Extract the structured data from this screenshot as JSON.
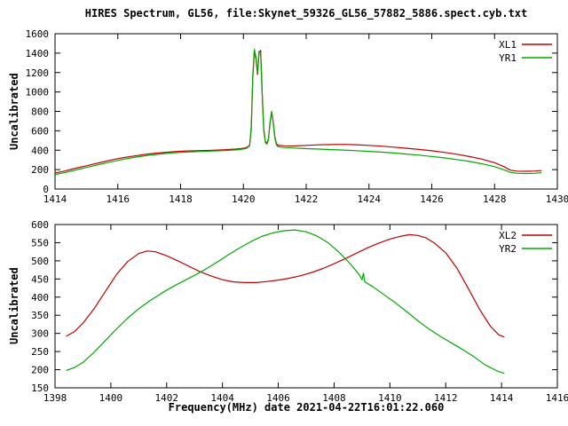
{
  "page": {
    "title": "HIRES Spectrum, GL56, file:Skynet_59326_GL56_57882_5886.spect.cyb.txt",
    "xlabel": "Frequency(MHz) date 2021-04-22T16:01:22.060"
  },
  "colors": {
    "axis": "#000000",
    "text": "#000000",
    "background": "#ffffff",
    "xl_red": "#c00000",
    "yr_green": "#00a800"
  },
  "chart_data": [
    {
      "type": "line",
      "ylabel": "Uncalibrated",
      "xlim": [
        1414,
        1430
      ],
      "ylim": [
        0,
        1600
      ],
      "xticks": [
        1414,
        1416,
        1418,
        1420,
        1422,
        1424,
        1426,
        1428,
        1430
      ],
      "yticks": [
        0,
        200,
        400,
        600,
        800,
        1000,
        1200,
        1400,
        1600
      ],
      "legend_position": "top-right",
      "series": [
        {
          "name": "XL1",
          "color": "#c00000",
          "points": [
            [
              1414.0,
              165
            ],
            [
              1414.3,
              185
            ],
            [
              1414.6,
              210
            ],
            [
              1415.0,
              240
            ],
            [
              1415.4,
              270
            ],
            [
              1415.8,
              300
            ],
            [
              1416.2,
              325
            ],
            [
              1416.6,
              345
            ],
            [
              1417.0,
              362
            ],
            [
              1417.4,
              375
            ],
            [
              1417.8,
              385
            ],
            [
              1418.2,
              392
            ],
            [
              1418.6,
              396
            ],
            [
              1419.0,
              400
            ],
            [
              1419.4,
              405
            ],
            [
              1419.8,
              412
            ],
            [
              1420.0,
              420
            ],
            [
              1420.1,
              428
            ],
            [
              1420.2,
              450
            ],
            [
              1420.25,
              620
            ],
            [
              1420.3,
              1150
            ],
            [
              1420.35,
              1420
            ],
            [
              1420.4,
              1340
            ],
            [
              1420.45,
              1180
            ],
            [
              1420.5,
              1400
            ],
            [
              1420.55,
              1430
            ],
            [
              1420.6,
              980
            ],
            [
              1420.65,
              620
            ],
            [
              1420.7,
              490
            ],
            [
              1420.75,
              472
            ],
            [
              1420.8,
              520
            ],
            [
              1420.85,
              680
            ],
            [
              1420.9,
              790
            ],
            [
              1420.95,
              690
            ],
            [
              1421.0,
              540
            ],
            [
              1421.05,
              470
            ],
            [
              1421.1,
              452
            ],
            [
              1421.3,
              445
            ],
            [
              1421.6,
              443
            ],
            [
              1422.0,
              450
            ],
            [
              1422.4,
              455
            ],
            [
              1422.8,
              458
            ],
            [
              1423.2,
              460
            ],
            [
              1423.6,
              456
            ],
            [
              1424.0,
              450
            ],
            [
              1424.4,
              442
            ],
            [
              1424.8,
              432
            ],
            [
              1425.2,
              420
            ],
            [
              1425.6,
              408
            ],
            [
              1426.0,
              394
            ],
            [
              1426.4,
              378
            ],
            [
              1426.8,
              358
            ],
            [
              1427.2,
              335
            ],
            [
              1427.6,
              308
            ],
            [
              1428.0,
              272
            ],
            [
              1428.3,
              230
            ],
            [
              1428.5,
              195
            ],
            [
              1428.7,
              185
            ],
            [
              1429.0,
              183
            ],
            [
              1429.3,
              186
            ],
            [
              1429.5,
              190
            ]
          ]
        },
        {
          "name": "YR1",
          "color": "#00a800",
          "points": [
            [
              1414.0,
              148
            ],
            [
              1414.3,
              168
            ],
            [
              1414.6,
              192
            ],
            [
              1415.0,
              222
            ],
            [
              1415.4,
              252
            ],
            [
              1415.8,
              282
            ],
            [
              1416.2,
              308
            ],
            [
              1416.6,
              330
            ],
            [
              1417.0,
              348
            ],
            [
              1417.4,
              362
            ],
            [
              1417.8,
              373
            ],
            [
              1418.2,
              381
            ],
            [
              1418.6,
              386
            ],
            [
              1419.0,
              391
            ],
            [
              1419.4,
              396
            ],
            [
              1419.8,
              404
            ],
            [
              1420.0,
              412
            ],
            [
              1420.1,
              420
            ],
            [
              1420.2,
              445
            ],
            [
              1420.25,
              650
            ],
            [
              1420.3,
              1180
            ],
            [
              1420.35,
              1440
            ],
            [
              1420.4,
              1360
            ],
            [
              1420.45,
              1200
            ],
            [
              1420.5,
              1420
            ],
            [
              1420.55,
              1400
            ],
            [
              1420.6,
              950
            ],
            [
              1420.65,
              600
            ],
            [
              1420.7,
              478
            ],
            [
              1420.75,
              462
            ],
            [
              1420.8,
              510
            ],
            [
              1420.85,
              690
            ],
            [
              1420.9,
              800
            ],
            [
              1420.95,
              680
            ],
            [
              1421.0,
              530
            ],
            [
              1421.05,
              455
            ],
            [
              1421.1,
              436
            ],
            [
              1421.3,
              428
            ],
            [
              1421.6,
              422
            ],
            [
              1422.0,
              416
            ],
            [
              1422.4,
              411
            ],
            [
              1422.8,
              406
            ],
            [
              1423.2,
              401
            ],
            [
              1423.6,
              395
            ],
            [
              1424.0,
              388
            ],
            [
              1424.4,
              380
            ],
            [
              1424.8,
              371
            ],
            [
              1425.2,
              360
            ],
            [
              1425.6,
              349
            ],
            [
              1426.0,
              336
            ],
            [
              1426.4,
              321
            ],
            [
              1426.8,
              304
            ],
            [
              1427.2,
              284
            ],
            [
              1427.6,
              260
            ],
            [
              1428.0,
              230
            ],
            [
              1428.3,
              198
            ],
            [
              1428.5,
              172
            ],
            [
              1428.7,
              163
            ],
            [
              1429.0,
              160
            ],
            [
              1429.3,
              163
            ],
            [
              1429.5,
              167
            ]
          ]
        }
      ]
    },
    {
      "type": "line",
      "ylabel": "Uncalibrated",
      "xlim": [
        1398,
        1416
      ],
      "ylim": [
        150,
        600
      ],
      "xticks": [
        1398,
        1400,
        1402,
        1404,
        1406,
        1408,
        1410,
        1412,
        1414,
        1416
      ],
      "yticks": [
        150,
        200,
        250,
        300,
        350,
        400,
        450,
        500,
        550,
        600
      ],
      "legend_position": "top-right",
      "series": [
        {
          "name": "XL2",
          "color": "#c00000",
          "points": [
            [
              1398.4,
              292
            ],
            [
              1398.7,
              305
            ],
            [
              1399.0,
              328
            ],
            [
              1399.4,
              368
            ],
            [
              1399.8,
              415
            ],
            [
              1400.2,
              462
            ],
            [
              1400.6,
              498
            ],
            [
              1401.0,
              520
            ],
            [
              1401.3,
              527
            ],
            [
              1401.6,
              525
            ],
            [
              1402.0,
              514
            ],
            [
              1402.4,
              500
            ],
            [
              1402.8,
              485
            ],
            [
              1403.2,
              470
            ],
            [
              1403.6,
              458
            ],
            [
              1404.0,
              448
            ],
            [
              1404.4,
              442
            ],
            [
              1404.8,
              440
            ],
            [
              1405.2,
              440
            ],
            [
              1405.6,
              443
            ],
            [
              1406.0,
              447
            ],
            [
              1406.4,
              452
            ],
            [
              1406.8,
              459
            ],
            [
              1407.2,
              468
            ],
            [
              1407.6,
              479
            ],
            [
              1408.0,
              492
            ],
            [
              1408.4,
              506
            ],
            [
              1408.8,
              521
            ],
            [
              1409.2,
              536
            ],
            [
              1409.6,
              549
            ],
            [
              1410.0,
              560
            ],
            [
              1410.4,
              568
            ],
            [
              1410.7,
              572
            ],
            [
              1411.0,
              570
            ],
            [
              1411.3,
              563
            ],
            [
              1411.6,
              549
            ],
            [
              1412.0,
              522
            ],
            [
              1412.4,
              480
            ],
            [
              1412.8,
              425
            ],
            [
              1413.2,
              368
            ],
            [
              1413.6,
              320
            ],
            [
              1413.9,
              296
            ],
            [
              1414.1,
              290
            ]
          ]
        },
        {
          "name": "YR2",
          "color": "#00a800",
          "points": [
            [
              1398.4,
              198
            ],
            [
              1398.7,
              206
            ],
            [
              1399.0,
              220
            ],
            [
              1399.4,
              248
            ],
            [
              1399.8,
              280
            ],
            [
              1400.2,
              312
            ],
            [
              1400.6,
              342
            ],
            [
              1401.0,
              368
            ],
            [
              1401.4,
              390
            ],
            [
              1401.8,
              410
            ],
            [
              1402.2,
              428
            ],
            [
              1402.6,
              444
            ],
            [
              1403.0,
              460
            ],
            [
              1403.4,
              477
            ],
            [
              1403.8,
              496
            ],
            [
              1404.2,
              516
            ],
            [
              1404.6,
              535
            ],
            [
              1405.0,
              552
            ],
            [
              1405.4,
              567
            ],
            [
              1405.8,
              577
            ],
            [
              1406.2,
              583
            ],
            [
              1406.6,
              585
            ],
            [
              1407.0,
              580
            ],
            [
              1407.4,
              568
            ],
            [
              1407.8,
              549
            ],
            [
              1408.2,
              522
            ],
            [
              1408.6,
              490
            ],
            [
              1408.9,
              462
            ],
            [
              1409.0,
              448
            ],
            [
              1409.05,
              466
            ],
            [
              1409.1,
              442
            ],
            [
              1409.4,
              428
            ],
            [
              1409.8,
              406
            ],
            [
              1410.2,
              384
            ],
            [
              1410.6,
              360
            ],
            [
              1411.0,
              335
            ],
            [
              1411.4,
              312
            ],
            [
              1411.8,
              292
            ],
            [
              1412.2,
              274
            ],
            [
              1412.6,
              256
            ],
            [
              1413.0,
              236
            ],
            [
              1413.4,
              214
            ],
            [
              1413.8,
              198
            ],
            [
              1414.0,
              192
            ],
            [
              1414.1,
              190
            ]
          ]
        }
      ]
    }
  ]
}
